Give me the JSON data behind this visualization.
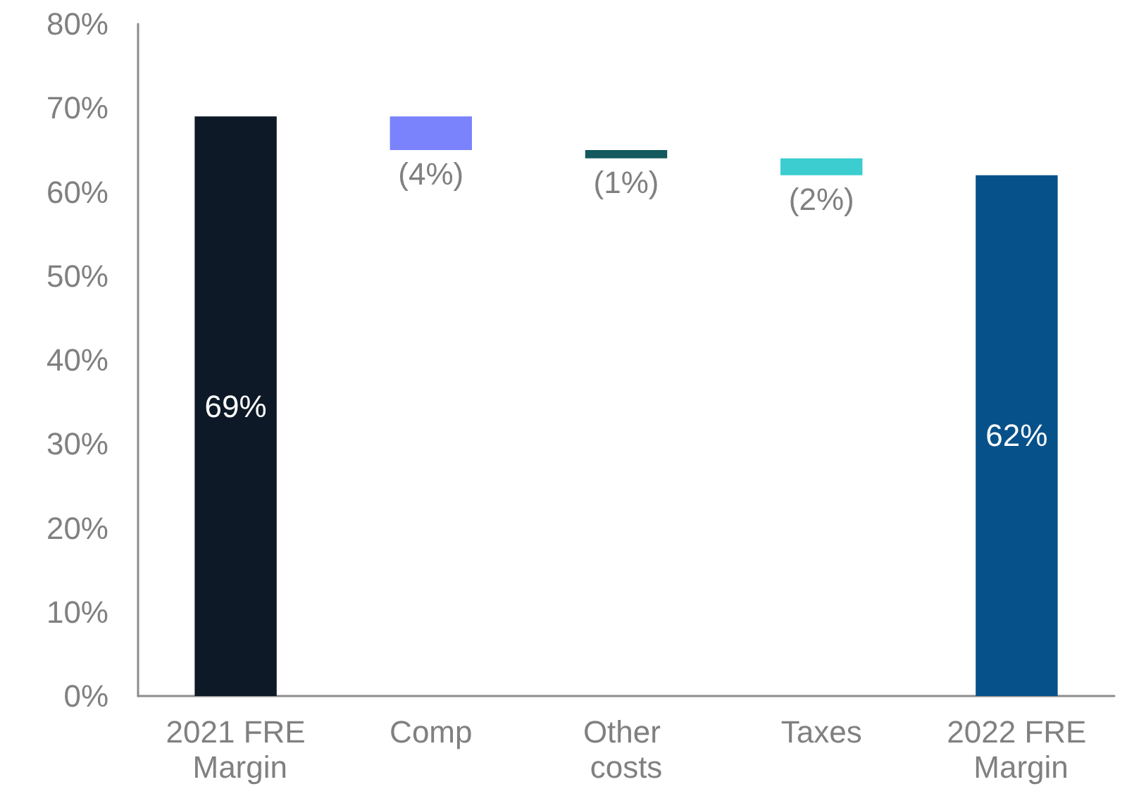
{
  "chart_data": {
    "type": "bar",
    "categories": [
      "2021 FRE Margin",
      "Comp",
      "Other costs",
      "Taxes",
      "2022 FRE Margin"
    ],
    "values": [
      69,
      -4,
      -1,
      -2,
      62
    ],
    "base": [
      0,
      69,
      65,
      64,
      0
    ],
    "colors": [
      "#0d1926",
      "#7a82fc",
      "#13595d",
      "#3ccdd0",
      "#07518a"
    ],
    "value_labels": [
      "69%",
      "(4%)",
      "(1%)",
      "(2%)",
      "62%"
    ],
    "ylim": [
      0,
      80
    ],
    "yticks": [
      {
        "value": 0,
        "label": "0%"
      },
      {
        "value": 10,
        "label": "10%"
      },
      {
        "value": 20,
        "label": "20%"
      },
      {
        "value": 30,
        "label": "30%"
      },
      {
        "value": 40,
        "label": "40%"
      },
      {
        "value": 50,
        "label": "50%"
      },
      {
        "value": 60,
        "label": "60%"
      },
      {
        "value": 70,
        "label": "70%"
      },
      {
        "value": 80,
        "label": "80%"
      }
    ],
    "grid": false
  }
}
